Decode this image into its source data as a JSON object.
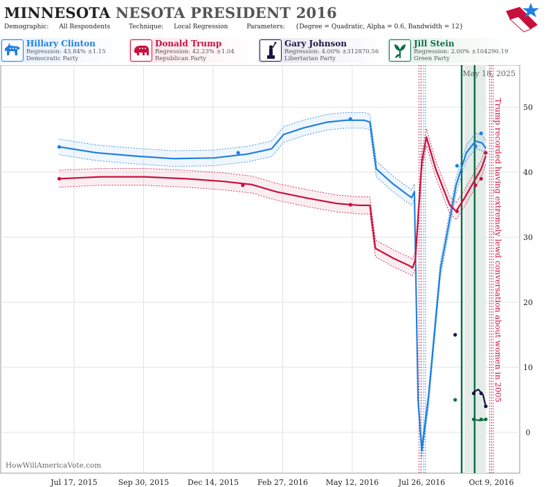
{
  "header": {
    "title_main": "MINNESOTA",
    "title_rest": "NESOTA PRESIDENT 2016",
    "demographic_label": "Demographic:",
    "demographic_value": "All Respondents",
    "technique_label": "Technique:",
    "technique_value": "Local Regression",
    "parameters_label": "Parameters:",
    "parameters_value": "{Degree = Quadratic, Alpha = 0.6, Bandwidth = 12}"
  },
  "candidates": [
    {
      "name": "Hillary Clinton",
      "regression": "Regression: 43.84% ±1.15",
      "party": "Democratic Party",
      "color": "#1f7fe0",
      "icon": "donkey-icon"
    },
    {
      "name": "Donald Trump",
      "regression": "Regression: 42.23% ±1.04",
      "party": "Republican Party",
      "color": "#c8103c",
      "icon": "elephant-icon"
    },
    {
      "name": "Gary Johnson",
      "regression": "Regression: 4.00% ±312870.56",
      "party": "Libertarian Party",
      "color": "#1a1446",
      "icon": "liberty-icon"
    },
    {
      "name": "Jill Stein",
      "regression": "Regression: 2.00% ±104290.19",
      "party": "Green Party",
      "color": "#0e6e46",
      "icon": "green-leaf-icon"
    }
  ],
  "chart_data": {
    "type": "line",
    "x_ticks": [
      "Jul 17, 2015",
      "Sep 30, 2015",
      "Dec 14, 2015",
      "Feb 27, 2016",
      "May 12, 2016",
      "Jul 26, 2016",
      "Oct 9, 2016"
    ],
    "y_ticks": [
      0,
      10,
      20,
      30,
      40,
      50
    ],
    "ylim": [
      -6,
      56
    ],
    "date_label": "May 18, 2025",
    "annotation": "Trump recorded having extremely lewd conversation about women in 2005",
    "watermark": "HowWillAmericaVote.com",
    "series": [
      {
        "name": "Hillary Clinton",
        "color": "#1f7fe0",
        "line": [
          [
            "2015-07-01",
            43.9
          ],
          [
            "2015-08-10",
            43.0
          ],
          [
            "2015-09-20",
            42.5
          ],
          [
            "2015-11-01",
            42.1
          ],
          [
            "2015-12-15",
            42.2
          ],
          [
            "2016-01-20",
            42.8
          ],
          [
            "2016-02-15",
            43.6
          ],
          [
            "2016-02-28",
            45.8
          ],
          [
            "2016-03-20",
            46.8
          ],
          [
            "2016-04-15",
            47.7
          ],
          [
            "2016-05-05",
            48.0
          ],
          [
            "2016-05-25",
            48.0
          ],
          [
            "2016-05-31",
            47.7
          ],
          [
            "2016-06-07",
            40.5
          ],
          [
            "2016-06-25",
            38.2
          ],
          [
            "2016-07-10",
            36.6
          ],
          [
            "2016-07-15",
            36.1
          ],
          [
            "2016-07-18",
            37.0
          ],
          [
            "2016-07-22",
            5.0
          ],
          [
            "2016-07-26",
            -2.8
          ],
          [
            "2016-08-02",
            5.0
          ],
          [
            "2016-08-15",
            25.0
          ],
          [
            "2016-09-01",
            38.0
          ],
          [
            "2016-09-12",
            43.0
          ],
          [
            "2016-09-22",
            44.8
          ],
          [
            "2016-09-29",
            44.5
          ],
          [
            "2016-10-03",
            43.7
          ]
        ],
        "band": 1.2,
        "points": [
          [
            "2015-07-01",
            43.9
          ],
          [
            "2016-01-10",
            43.0
          ],
          [
            "2016-05-10",
            48.2
          ],
          [
            "2016-09-02",
            41.0
          ],
          [
            "2016-09-22",
            44.0
          ],
          [
            "2016-09-28",
            46.0
          ]
        ]
      },
      {
        "name": "Donald Trump",
        "color": "#c8103c",
        "line": [
          [
            "2015-07-01",
            39.0
          ],
          [
            "2015-08-15",
            39.3
          ],
          [
            "2015-10-01",
            39.3
          ],
          [
            "2015-11-15",
            39.0
          ],
          [
            "2015-12-25",
            38.6
          ],
          [
            "2016-01-25",
            38.1
          ],
          [
            "2016-02-20",
            37.0
          ],
          [
            "2016-03-25",
            36.0
          ],
          [
            "2016-04-25",
            35.2
          ],
          [
            "2016-05-20",
            34.9
          ],
          [
            "2016-05-31",
            34.9
          ],
          [
            "2016-06-06",
            28.3
          ],
          [
            "2016-06-25",
            26.8
          ],
          [
            "2016-07-13",
            25.6
          ],
          [
            "2016-07-16",
            25.3
          ],
          [
            "2016-07-19",
            26.5
          ],
          [
            "2016-07-26",
            41.5
          ],
          [
            "2016-07-31",
            45.4
          ],
          [
            "2016-08-10",
            40.5
          ],
          [
            "2016-08-25",
            35.0
          ],
          [
            "2016-09-01",
            34.0
          ],
          [
            "2016-09-10",
            36.0
          ],
          [
            "2016-09-20",
            38.5
          ],
          [
            "2016-09-28",
            40.5
          ],
          [
            "2016-10-03",
            42.5
          ]
        ],
        "band": 1.3,
        "points": [
          [
            "2015-07-01",
            39.0
          ],
          [
            "2016-01-15",
            38.0
          ],
          [
            "2016-05-10",
            35.0
          ],
          [
            "2016-09-02",
            34.0
          ],
          [
            "2016-09-22",
            38.0
          ],
          [
            "2016-09-28",
            39.0
          ],
          [
            "2016-10-03",
            43.0
          ]
        ]
      },
      {
        "name": "Gary Johnson",
        "color": "#1a1446",
        "line": [
          [
            "2016-09-20",
            6.2
          ],
          [
            "2016-09-25",
            6.6
          ],
          [
            "2016-09-30",
            5.8
          ],
          [
            "2016-10-03",
            4.0
          ]
        ],
        "band": 0,
        "points": [
          [
            "2016-08-31",
            15.0
          ],
          [
            "2016-09-20",
            6.0
          ],
          [
            "2016-09-28",
            6.0
          ],
          [
            "2016-10-03",
            4.0
          ]
        ]
      },
      {
        "name": "Jill Stein",
        "color": "#0e6e46",
        "line": [
          [
            "2016-09-20",
            2.0
          ],
          [
            "2016-09-27",
            1.8
          ],
          [
            "2016-10-03",
            2.0
          ]
        ],
        "band": 0,
        "points": [
          [
            "2016-08-31",
            5.0
          ],
          [
            "2016-09-20",
            2.0
          ],
          [
            "2016-09-28",
            2.0
          ],
          [
            "2016-10-03",
            2.0
          ]
        ]
      }
    ]
  }
}
